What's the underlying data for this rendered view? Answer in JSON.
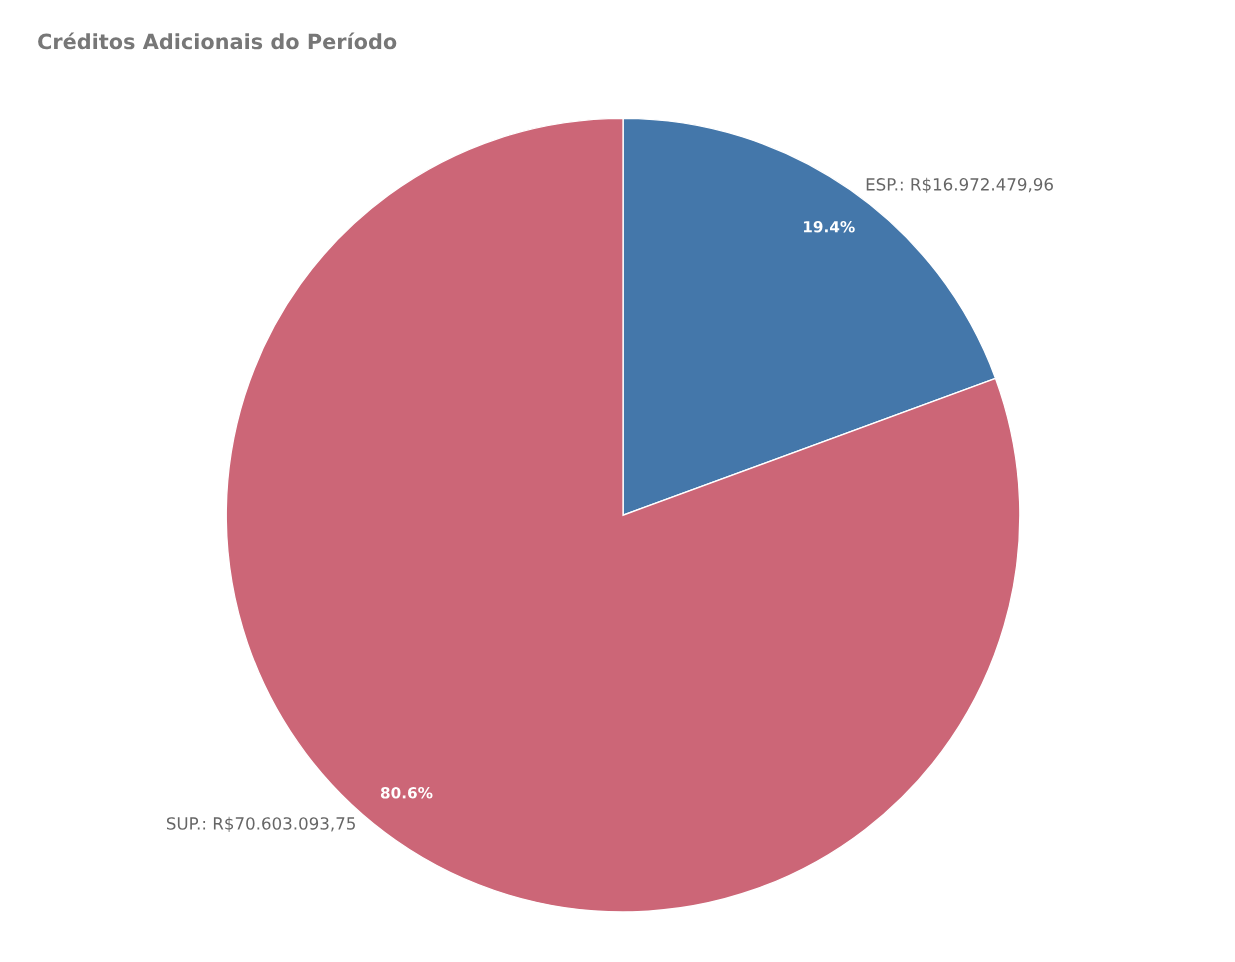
{
  "chart_data": {
    "type": "pie",
    "title": "Créditos Adicionais do Período",
    "categories": [
      "ESP.: R$16.972.479,96",
      "SUP.: R$70.603.093,75"
    ],
    "values": [
      19.4,
      80.6
    ],
    "colors": [
      "#4477aa",
      "#cc6677"
    ],
    "value_labels": [
      "19.4%",
      "80.6%"
    ],
    "legend": false
  }
}
